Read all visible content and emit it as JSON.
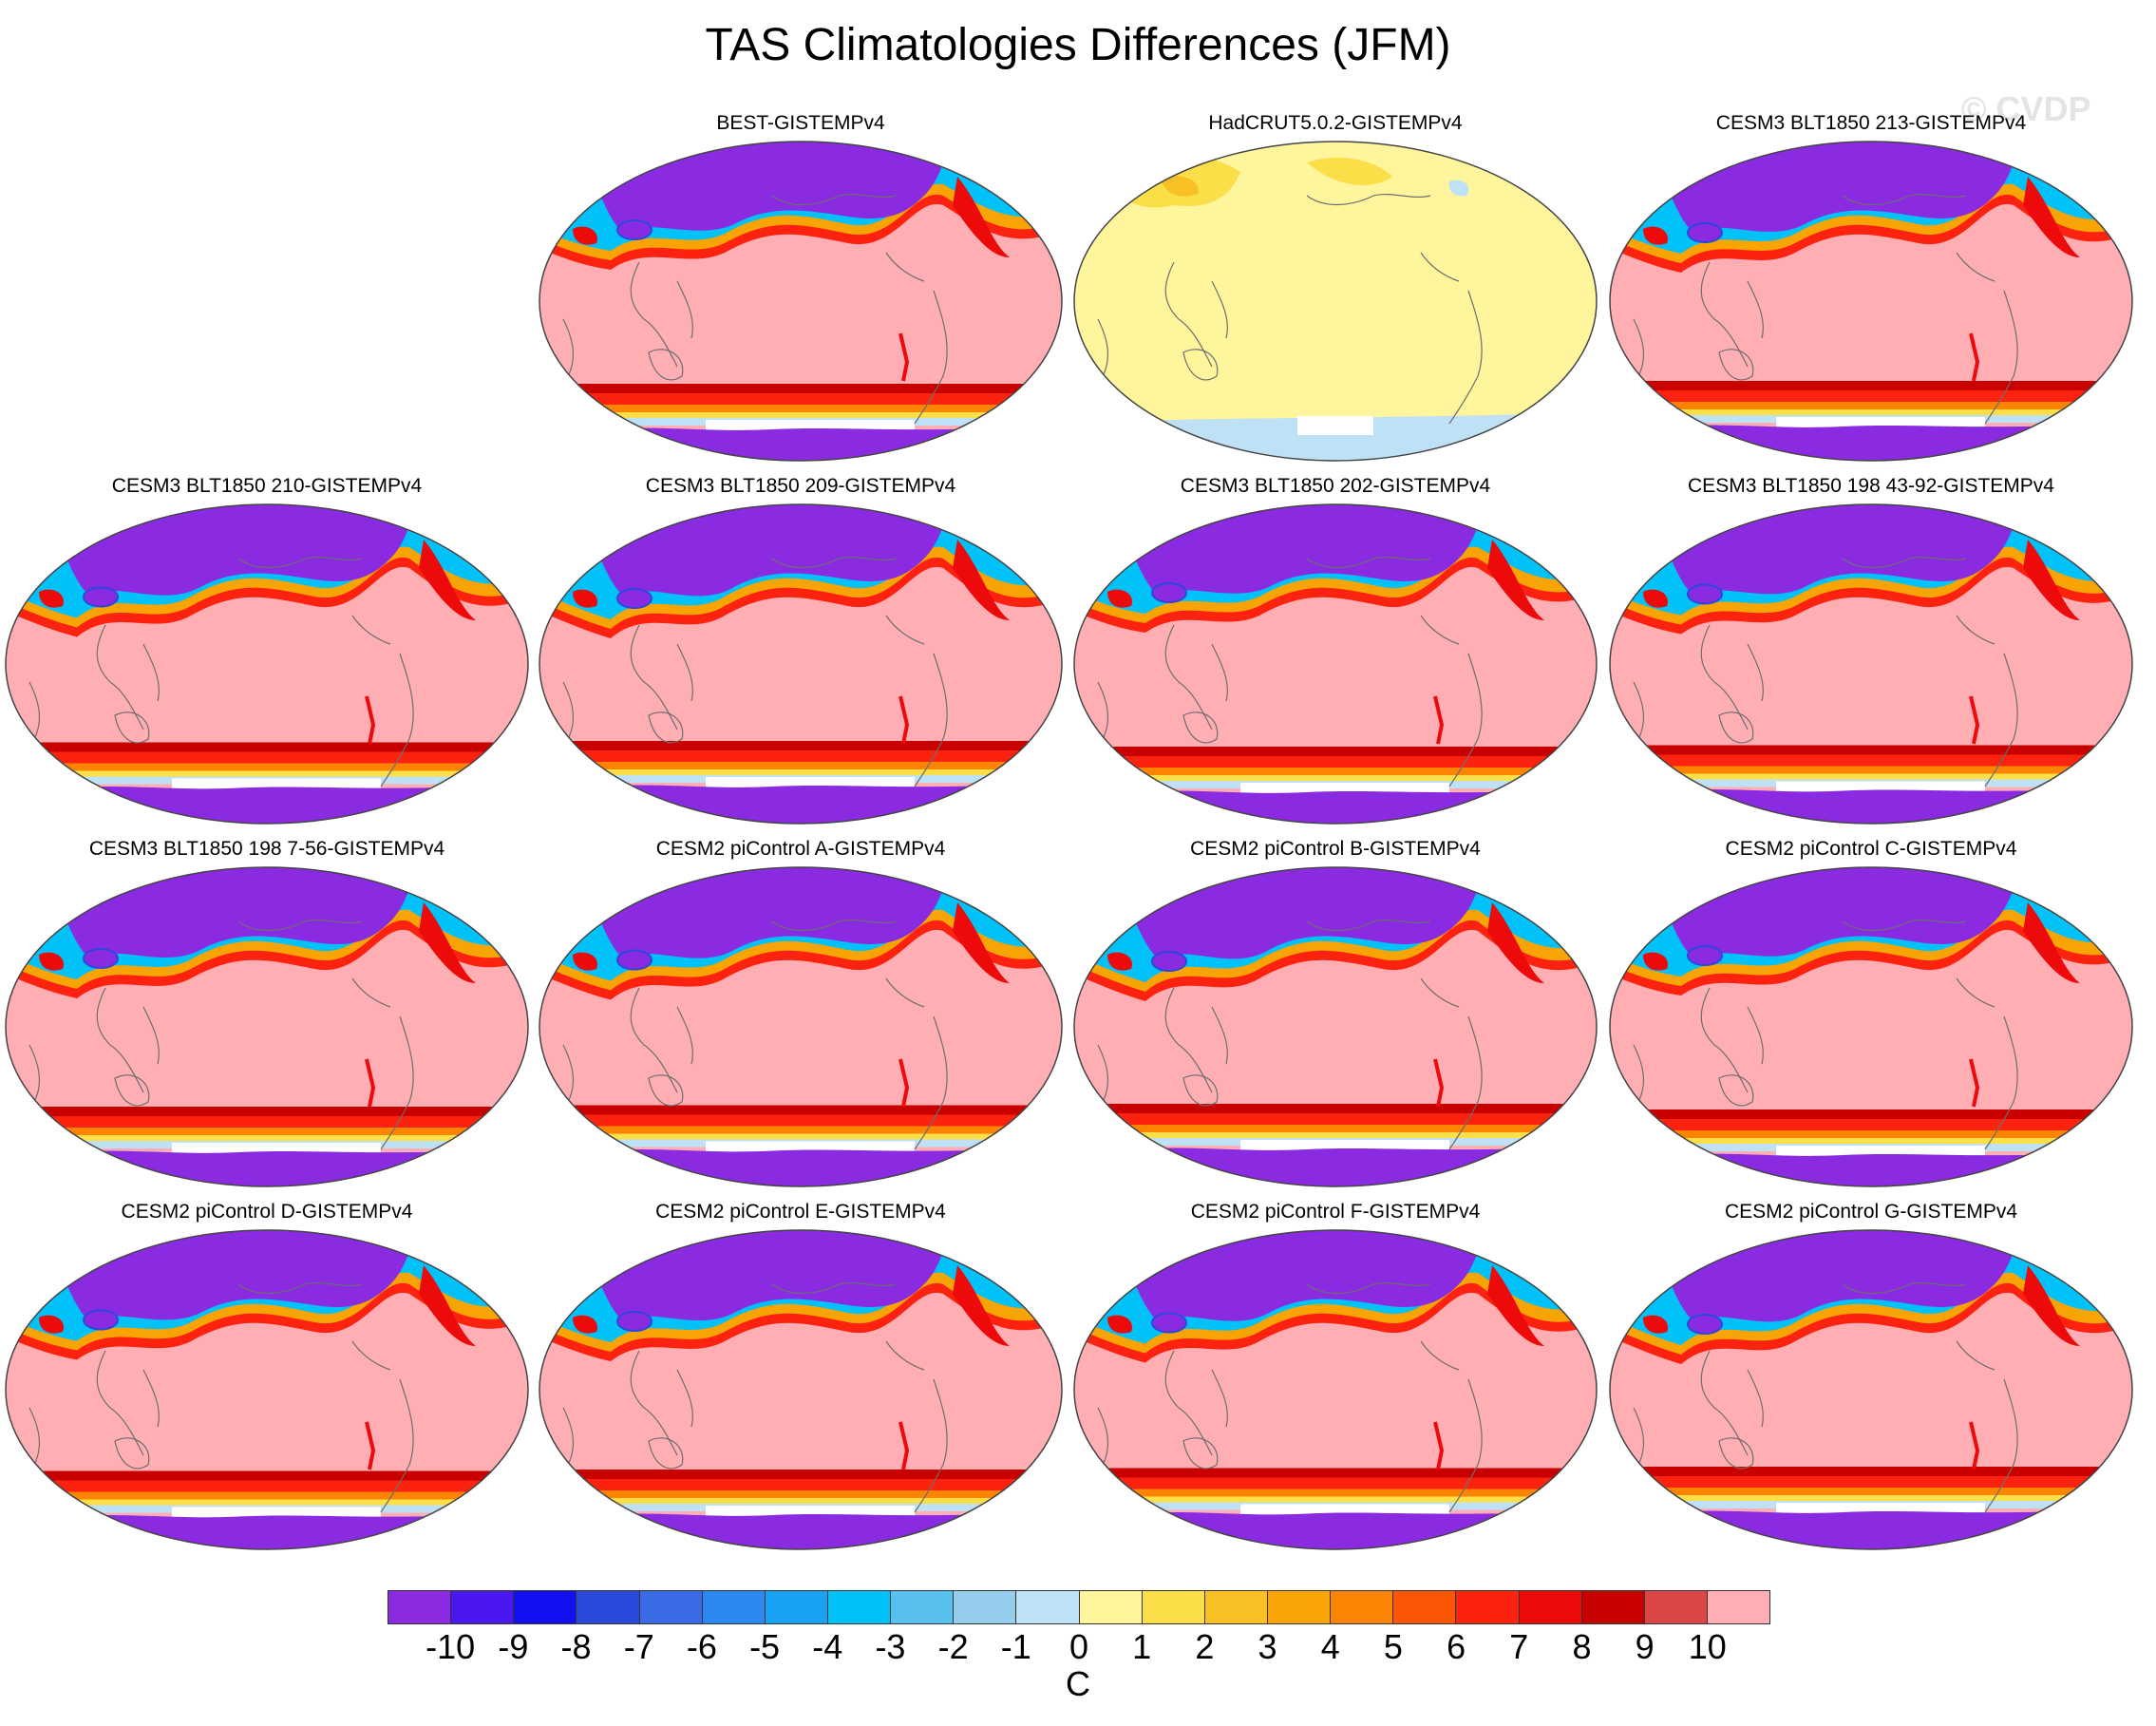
{
  "title": "TAS Climatologies Differences (JFM)",
  "watermark": "© CVDP",
  "panels": [
    {
      "label": "BEST-GISTEMPv4",
      "kind": "obs"
    },
    {
      "label": "HadCRUT5.0.2-GISTEMPv4",
      "kind": "had"
    },
    {
      "label": "CESM3 BLT1850 213-GISTEMPv4",
      "kind": "model"
    },
    {
      "label": "CESM3 BLT1850 210-GISTEMPv4",
      "kind": "model"
    },
    {
      "label": "CESM3 BLT1850 209-GISTEMPv4",
      "kind": "model"
    },
    {
      "label": "CESM3 BLT1850 202-GISTEMPv4",
      "kind": "model"
    },
    {
      "label": "CESM3 BLT1850 198 43-92-GISTEMPv4",
      "kind": "model"
    },
    {
      "label": "CESM3 BLT1850 198 7-56-GISTEMPv4",
      "kind": "model"
    },
    {
      "label": "CESM2 piControl A-GISTEMPv4",
      "kind": "model"
    },
    {
      "label": "CESM2 piControl B-GISTEMPv4",
      "kind": "model"
    },
    {
      "label": "CESM2 piControl C-GISTEMPv4",
      "kind": "model"
    },
    {
      "label": "CESM2 piControl D-GISTEMPv4",
      "kind": "model"
    },
    {
      "label": "CESM2 piControl E-GISTEMPv4",
      "kind": "model"
    },
    {
      "label": "CESM2 piControl F-GISTEMPv4",
      "kind": "model"
    },
    {
      "label": "CESM2 piControl G-GISTEMPv4",
      "kind": "model"
    }
  ],
  "colorbar": {
    "units": "C",
    "labels": [
      "-10",
      "-9",
      "-8",
      "-7",
      "-6",
      "-5",
      "-4",
      "-3",
      "-2",
      "-1",
      "0",
      "1",
      "2",
      "3",
      "4",
      "5",
      "6",
      "7",
      "8",
      "9",
      "10"
    ],
    "colors": [
      "#8a2be2",
      "#4b17f0",
      "#1010f0",
      "#2a48dc",
      "#3a6ae6",
      "#2a88f0",
      "#18a2f2",
      "#00c2f8",
      "#58c0ee",
      "#96ccec",
      "#bfe1f5",
      "#fff59c",
      "#fbdf48",
      "#f8c024",
      "#f8a404",
      "#fb8402",
      "#fb5606",
      "#fb2210",
      "#ec0a0a",
      "#c80000",
      "#dc4646",
      "#ffaeb4"
    ]
  },
  "colors": {
    "land_outline": "#6e6e6e",
    "had_background": "#fff59c",
    "had_warm": "#fbdf48",
    "had_cool": "#bfe1f5"
  }
}
